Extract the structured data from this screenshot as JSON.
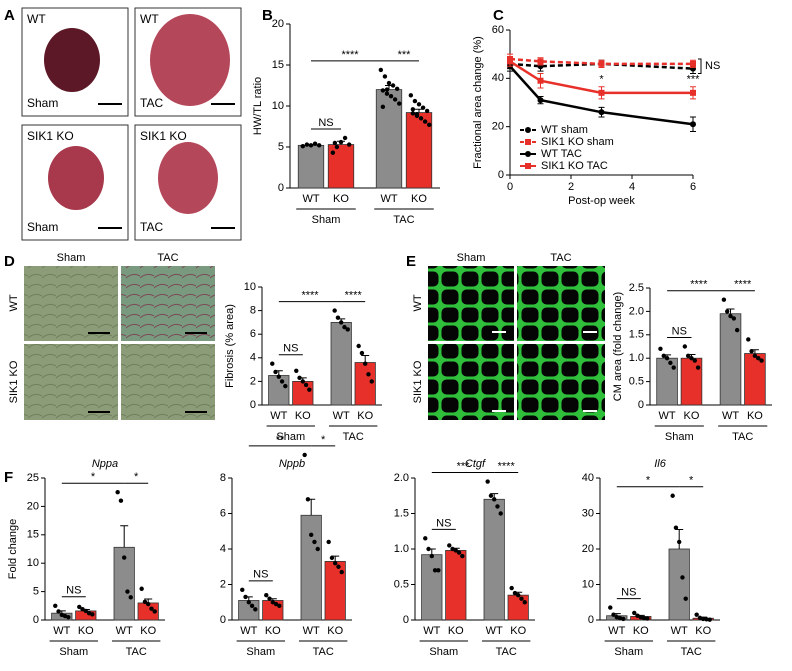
{
  "panel_letters": [
    "A",
    "B",
    "C",
    "D",
    "E",
    "F"
  ],
  "heart_images": [
    {
      "genotype": "WT",
      "condition": "Sham"
    },
    {
      "genotype": "WT",
      "condition": "TAC"
    },
    {
      "genotype": "SIK1 KO",
      "condition": "Sham"
    },
    {
      "genotype": "SIK1 KO",
      "condition": "TAC"
    }
  ],
  "histology": {
    "columns": [
      "Sham",
      "TAC"
    ],
    "rows": [
      "WT",
      "SIK1 KO"
    ]
  },
  "microscopy": {
    "columns": [
      "Sham",
      "TAC"
    ],
    "rows": [
      "WT",
      "SIK1 KO"
    ]
  },
  "chart_data": [
    {
      "type": "bar",
      "ylabel": "HW/TL ratio",
      "categories": [
        "WT",
        "KO",
        "WT",
        "KO"
      ],
      "groups": [
        "Sham",
        "TAC"
      ],
      "colors": [
        "#8c8c8c",
        "#e8302a",
        "#8c8c8c",
        "#e8302a"
      ],
      "values": [
        5.2,
        5.3,
        12.0,
        9.2
      ],
      "errors": [
        0.1,
        0.4,
        0.5,
        0.4
      ],
      "points": [
        [
          5.1,
          5.3,
          5.2,
          5.4,
          5.2
        ],
        [
          4.3,
          5.0,
          5.6,
          6.1,
          5.3,
          5.5
        ],
        [
          14.4,
          13.6,
          12.8,
          12.5,
          12.1,
          11.9,
          11.5,
          11.2,
          10.8,
          10.3,
          9.9,
          12.0
        ],
        [
          11.3,
          10.6,
          10.2,
          9.8,
          9.4,
          9.1,
          8.8,
          8.5,
          8.1,
          7.7,
          9.6,
          9.0
        ]
      ],
      "ylim": [
        0,
        20
      ],
      "yticks": [
        0,
        5,
        10,
        15,
        20
      ],
      "comparisons": [
        {
          "from": 0,
          "to": 1,
          "label": "NS"
        },
        {
          "from": 2,
          "to": 3,
          "label": "***"
        },
        {
          "from": 0,
          "to": 2,
          "label": "****"
        }
      ]
    },
    {
      "type": "line",
      "xlabel": "Post-op week",
      "ylabel": "Fractional area change (%)",
      "x": [
        0,
        1,
        3,
        6
      ],
      "xlim": [
        0,
        6
      ],
      "xticks": [
        0,
        2,
        4,
        6
      ],
      "ylim": [
        0,
        60
      ],
      "yticks": [
        0,
        20,
        40,
        60
      ],
      "series": [
        {
          "name": "WT sham",
          "color": "#000000",
          "dashed": true,
          "marker": "circle",
          "values": [
            46,
            45,
            46,
            44
          ],
          "errors": [
            2,
            2,
            1.5,
            2
          ]
        },
        {
          "name": "SIK1 KO sham",
          "color": "#e8302a",
          "dashed": true,
          "marker": "square",
          "values": [
            48,
            47,
            46,
            46
          ],
          "errors": [
            2,
            1.5,
            1.5,
            1.5
          ]
        },
        {
          "name": "WT TAC",
          "color": "#000000",
          "dashed": false,
          "marker": "circle",
          "values": [
            45,
            31,
            26,
            21
          ],
          "errors": [
            2,
            1.5,
            2,
            3
          ]
        },
        {
          "name": "SIK1 KO TAC",
          "color": "#e8302a",
          "dashed": false,
          "marker": "square",
          "values": [
            47,
            39,
            34,
            34
          ],
          "errors": [
            2,
            3,
            2.5,
            2.5
          ]
        }
      ],
      "annotations": [
        {
          "x": 3,
          "label": "*"
        },
        {
          "x": 6,
          "label": "***"
        }
      ],
      "bracket_label": "NS"
    },
    {
      "type": "bar",
      "ylabel": "Fibrosis (% area)",
      "categories": [
        "WT",
        "KO",
        "WT",
        "KO"
      ],
      "groups": [
        "Sham",
        "TAC"
      ],
      "colors": [
        "#8c8c8c",
        "#e8302a",
        "#8c8c8c",
        "#e8302a"
      ],
      "values": [
        2.5,
        2.0,
        7.0,
        3.6
      ],
      "errors": [
        0.4,
        0.3,
        0.3,
        0.6
      ],
      "points": [
        [
          3.5,
          2.8,
          2.4,
          2.0,
          1.6
        ],
        [
          2.9,
          2.3,
          2.0,
          1.7,
          1.3
        ],
        [
          8.0,
          7.4,
          7.0,
          6.6,
          6.4
        ],
        [
          5.0,
          4.4,
          3.5,
          2.6,
          2.0
        ]
      ],
      "ylim": [
        0,
        10
      ],
      "yticks": [
        0,
        2,
        4,
        6,
        8,
        10
      ],
      "comparisons": [
        {
          "from": 0,
          "to": 1,
          "label": "NS"
        },
        {
          "from": 2,
          "to": 3,
          "label": "****"
        },
        {
          "from": 0,
          "to": 2,
          "label": "****"
        }
      ]
    },
    {
      "type": "bar",
      "ylabel": "CM area (fold change)",
      "categories": [
        "WT",
        "KO",
        "WT",
        "KO"
      ],
      "groups": [
        "Sham",
        "TAC"
      ],
      "colors": [
        "#8c8c8c",
        "#e8302a",
        "#8c8c8c",
        "#e8302a"
      ],
      "values": [
        1.0,
        1.0,
        1.95,
        1.1
      ],
      "errors": [
        0.07,
        0.08,
        0.1,
        0.08
      ],
      "points": [
        [
          1.2,
          1.05,
          1.0,
          0.9,
          0.8
        ],
        [
          1.25,
          1.05,
          1.0,
          0.95,
          0.8
        ],
        [
          2.25,
          2.0,
          1.9,
          1.85,
          1.6
        ],
        [
          1.4,
          1.15,
          1.05,
          1.0,
          0.95
        ]
      ],
      "ylim": [
        0,
        2.5
      ],
      "yticks": [
        0,
        0.5,
        {
          "value": 1,
          "label": "1.0"
        },
        1.5,
        {
          "value": 2,
          "label": "2.0"
        },
        2.5
      ],
      "comparisons": [
        {
          "from": 0,
          "to": 1,
          "label": "NS"
        },
        {
          "from": 2,
          "to": 3,
          "label": "****"
        },
        {
          "from": 0,
          "to": 2,
          "label": "****"
        }
      ]
    },
    {
      "type": "bar",
      "title": "Nppa",
      "ylabel": "Fold change",
      "categories": [
        "WT",
        "KO",
        "WT",
        "KO"
      ],
      "groups": [
        "Sham",
        "TAC"
      ],
      "colors": [
        "#8c8c8c",
        "#e8302a",
        "#8c8c8c",
        "#e8302a"
      ],
      "values": [
        1.2,
        1.6,
        12.8,
        3.0
      ],
      "errors": [
        0.4,
        0.25,
        3.8,
        0.7
      ],
      "points": [
        [
          2.5,
          1.5,
          0.9,
          0.7,
          0.5
        ],
        [
          2.3,
          1.9,
          1.6,
          1.2,
          1.0
        ],
        [
          22.5,
          21,
          11,
          5,
          4
        ],
        [
          5.5,
          3.2,
          2.8,
          2.0,
          1.5
        ]
      ],
      "ylim": [
        0,
        25
      ],
      "yticks": [
        0,
        5,
        10,
        15,
        20,
        25
      ],
      "comparisons": [
        {
          "from": 0,
          "to": 1,
          "label": "NS"
        },
        {
          "from": 2,
          "to": 3,
          "label": "*"
        },
        {
          "from": 0,
          "to": 2,
          "label": "*"
        }
      ]
    },
    {
      "type": "bar",
      "title": "Nppb",
      "categories": [
        "WT",
        "KO",
        "WT",
        "KO"
      ],
      "groups": [
        "Sham",
        "TAC"
      ],
      "colors": [
        "#8c8c8c",
        "#e8302a",
        "#8c8c8c",
        "#e8302a"
      ],
      "values": [
        1.1,
        1.1,
        5.9,
        3.3
      ],
      "errors": [
        0.2,
        0.1,
        0.9,
        0.3
      ],
      "points": [
        [
          1.7,
          1.3,
          1.0,
          0.8,
          0.6
        ],
        [
          1.4,
          1.2,
          1.0,
          0.9,
          0.8
        ],
        [
          9.3,
          6.8,
          4.8,
          4.4,
          4.0
        ],
        [
          4.4,
          3.5,
          3.2,
          3.0,
          2.7
        ]
      ],
      "ylim": [
        0,
        8
      ],
      "yticks": [
        0,
        2,
        4,
        6,
        8
      ],
      "comparisons": [
        {
          "from": 0,
          "to": 1,
          "label": "NS"
        },
        {
          "from": 2,
          "to": 3,
          "label": "*"
        },
        {
          "from": 0,
          "to": 2,
          "label": "**"
        }
      ]
    },
    {
      "type": "bar",
      "title": "Ctgf",
      "categories": [
        "WT",
        "KO",
        "WT",
        "KO"
      ],
      "groups": [
        "Sham",
        "TAC"
      ],
      "colors": [
        "#8c8c8c",
        "#e8302a",
        "#8c8c8c",
        "#e8302a"
      ],
      "values": [
        0.92,
        0.98,
        1.7,
        0.35
      ],
      "errors": [
        0.08,
        0.03,
        0.08,
        0.04
      ],
      "points": [
        [
          1.15,
          1.0,
          0.9,
          0.7,
          0.7
        ],
        [
          1.05,
          1.0,
          0.98,
          0.95,
          0.9
        ],
        [
          1.95,
          1.75,
          1.7,
          1.6,
          1.5
        ],
        [
          0.45,
          0.38,
          0.35,
          0.3,
          0.25
        ]
      ],
      "ylim": [
        0,
        2
      ],
      "yticks": [
        0,
        0.5,
        {
          "value": 1,
          "label": "1.0"
        },
        1.5,
        {
          "value": 2,
          "label": "2.0"
        }
      ],
      "comparisons": [
        {
          "from": 0,
          "to": 1,
          "label": "NS"
        },
        {
          "from": 2,
          "to": 3,
          "label": "****"
        },
        {
          "from": 0,
          "to": 2,
          "label": "***"
        }
      ]
    },
    {
      "type": "bar",
      "title": "Il6",
      "categories": [
        "WT",
        "KO",
        "WT",
        "KO"
      ],
      "groups": [
        "Sham",
        "TAC"
      ],
      "colors": [
        "#8c8c8c",
        "#e8302a",
        "#8c8c8c",
        "#e8302a"
      ],
      "values": [
        1.2,
        1.0,
        20,
        0.5
      ],
      "errors": [
        0.6,
        0.3,
        5.5,
        0.3
      ],
      "points": [
        [
          3.5,
          1.5,
          0.8,
          0.5,
          0.3
        ],
        [
          2.0,
          1.2,
          0.8,
          0.5,
          0.4
        ],
        [
          35,
          26,
          22,
          12,
          6
        ],
        [
          1.5,
          0.6,
          0.3,
          0.2,
          0.1
        ]
      ],
      "ylim": [
        0,
        40
      ],
      "yticks": [
        0,
        10,
        20,
        30,
        40
      ],
      "comparisons": [
        {
          "from": 0,
          "to": 1,
          "label": "NS"
        },
        {
          "from": 2,
          "to": 3,
          "label": "*"
        },
        {
          "from": 0,
          "to": 2,
          "label": "*"
        }
      ]
    }
  ]
}
